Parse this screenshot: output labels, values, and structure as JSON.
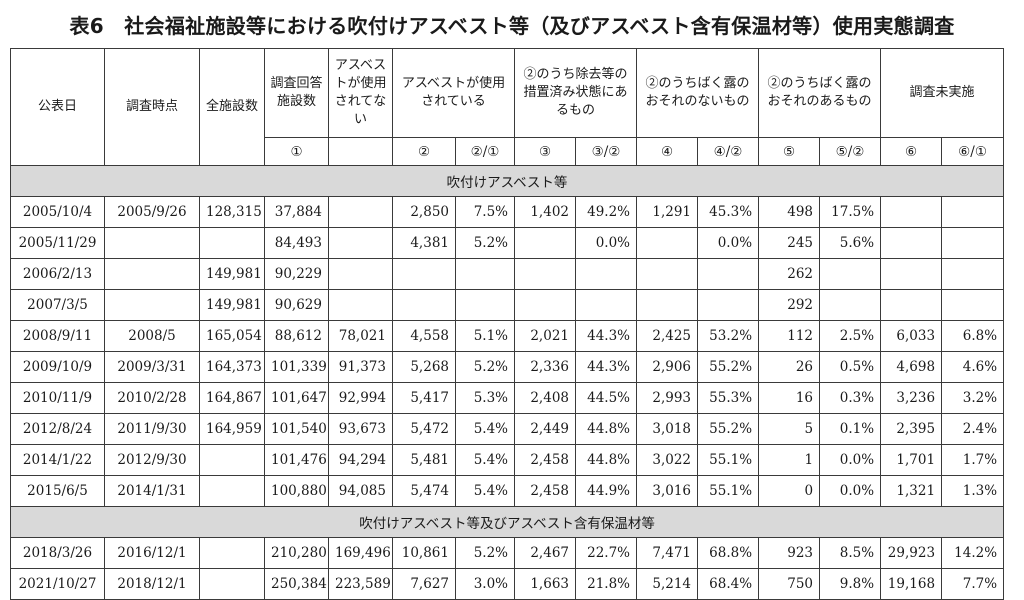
{
  "title": "表6　社会福祉施設等における吹付けアスベスト等（及びアスベスト含有保温材等）使用実態調査",
  "headers": {
    "published": "公表日",
    "survey_time": "調査時点",
    "total": "全施設数",
    "responded": "調査回答施設数",
    "not_used": "アスベストが使用されてない",
    "used": "アスベストが使用されている",
    "removed": "②のうち除去等の措置済み状態にあるもの",
    "no_risk": "②のうちばく露のおそれのないもの",
    "risk": "②のうちばく露のおそれのあるもの",
    "unsurveyed": "調査未実施"
  },
  "subheaders": {
    "s1": "①",
    "s2": "②",
    "s2_1": "②/①",
    "s3": "③",
    "s3_2": "③/②",
    "s4": "④",
    "s4_2": "④/②",
    "s5": "⑤",
    "s5_2": "⑤/②",
    "s6": "⑥",
    "s6_1": "⑥/①"
  },
  "sections": [
    {
      "label": "吹付けアスベスト等",
      "rows": [
        [
          "2005/10/4",
          "2005/9/26",
          "128,315",
          "37,884",
          "",
          "2,850",
          "7.5%",
          "1,402",
          "49.2%",
          "1,291",
          "45.3%",
          "498",
          "17.5%",
          "",
          ""
        ],
        [
          "2005/11/29",
          "",
          "",
          "84,493",
          "",
          "4,381",
          "5.2%",
          "",
          "0.0%",
          "",
          "0.0%",
          "245",
          "5.6%",
          "",
          ""
        ],
        [
          "2006/2/13",
          "",
          "149,981",
          "90,229",
          "",
          "",
          "",
          "",
          "",
          "",
          "",
          "262",
          "",
          "",
          ""
        ],
        [
          "2007/3/5",
          "",
          "149,981",
          "90,629",
          "",
          "",
          "",
          "",
          "",
          "",
          "",
          "292",
          "",
          "",
          ""
        ],
        [
          "2008/9/11",
          "2008/5",
          "165,054",
          "88,612",
          "78,021",
          "4,558",
          "5.1%",
          "2,021",
          "44.3%",
          "2,425",
          "53.2%",
          "112",
          "2.5%",
          "6,033",
          "6.8%"
        ],
        [
          "2009/10/9",
          "2009/3/31",
          "164,373",
          "101,339",
          "91,373",
          "5,268",
          "5.2%",
          "2,336",
          "44.3%",
          "2,906",
          "55.2%",
          "26",
          "0.5%",
          "4,698",
          "4.6%"
        ],
        [
          "2010/11/9",
          "2010/2/28",
          "164,867",
          "101,647",
          "92,994",
          "5,417",
          "5.3%",
          "2,408",
          "44.5%",
          "2,993",
          "55.3%",
          "16",
          "0.3%",
          "3,236",
          "3.2%"
        ],
        [
          "2012/8/24",
          "2011/9/30",
          "164,959",
          "101,540",
          "93,673",
          "5,472",
          "5.4%",
          "2,449",
          "44.8%",
          "3,018",
          "55.2%",
          "5",
          "0.1%",
          "2,395",
          "2.4%"
        ],
        [
          "2014/1/22",
          "2012/9/30",
          "",
          "101,476",
          "94,294",
          "5,481",
          "5.4%",
          "2,458",
          "44.8%",
          "3,022",
          "55.1%",
          "1",
          "0.0%",
          "1,701",
          "1.7%"
        ],
        [
          "2015/6/5",
          "2014/1/31",
          "",
          "100,880",
          "94,085",
          "5,474",
          "5.4%",
          "2,458",
          "44.9%",
          "3,016",
          "55.1%",
          "0",
          "0.0%",
          "1,321",
          "1.3%"
        ]
      ]
    },
    {
      "label": "吹付けアスベスト等及びアスベスト含有保温材等",
      "rows": [
        [
          "2018/3/26",
          "2016/12/1",
          "",
          "210,280",
          "169,496",
          "10,861",
          "5.2%",
          "2,467",
          "22.7%",
          "7,471",
          "68.8%",
          "923",
          "8.5%",
          "29,923",
          "14.2%"
        ],
        [
          "2021/10/27",
          "2018/12/1",
          "",
          "250,384",
          "223,589",
          "7,627",
          "3.0%",
          "1,663",
          "21.8%",
          "5,214",
          "68.4%",
          "750",
          "9.8%",
          "19,168",
          "7.7%"
        ]
      ]
    }
  ]
}
